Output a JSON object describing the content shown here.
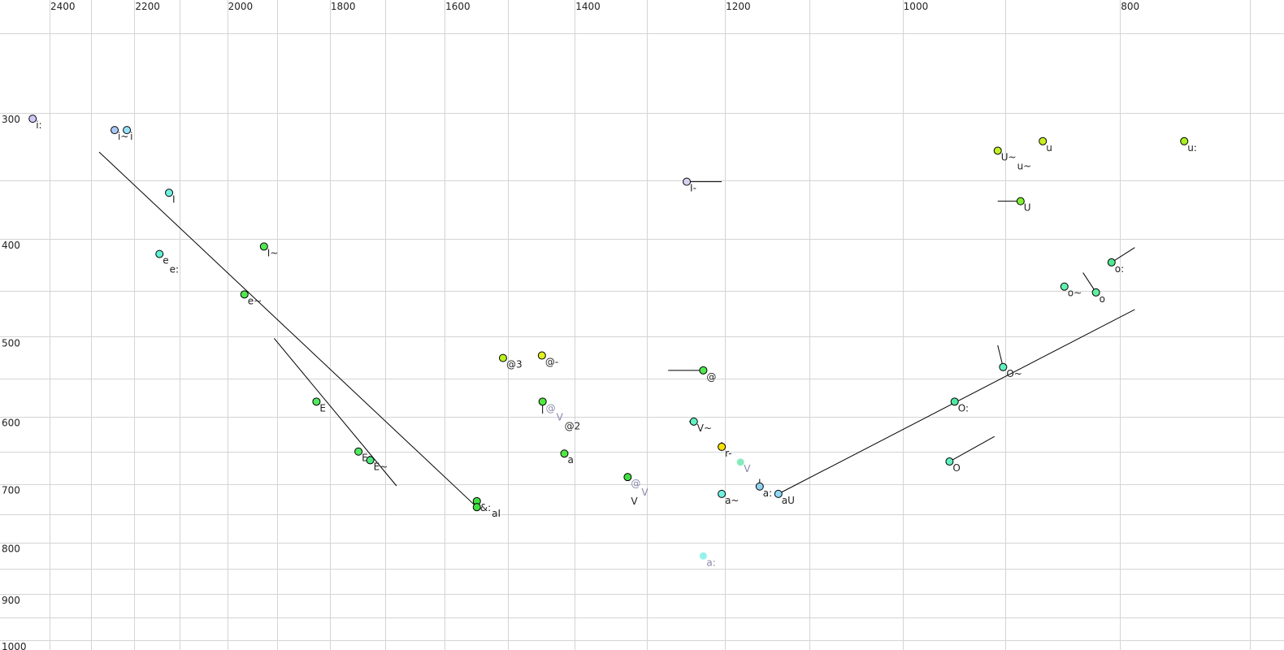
{
  "chart_data": {
    "type": "scatter",
    "title": "",
    "xlabel": "",
    "ylabel": "",
    "x_axis": {
      "quantity": "F2",
      "scale": "log",
      "reversed": true,
      "position": "top",
      "range": [
        2525,
        676
      ],
      "tick_labels": [
        2400,
        2200,
        2000,
        1800,
        1600,
        1400,
        1200,
        1000,
        800
      ],
      "grid_values": [
        2400,
        2300,
        2200,
        2100,
        2000,
        1900,
        1800,
        1700,
        1600,
        1500,
        1400,
        1300,
        1200,
        1100,
        1000,
        900,
        800,
        700
      ]
    },
    "y_axis": {
      "quantity": "F1",
      "scale": "log",
      "reversed": false,
      "position": "left",
      "range": [
        231,
        1037
      ],
      "tick_labels": [
        300,
        400,
        500,
        600,
        700,
        800,
        900,
        1000
      ],
      "grid_values": [
        250,
        300,
        350,
        400,
        450,
        500,
        550,
        600,
        650,
        700,
        750,
        800,
        850,
        900,
        950,
        1000
      ]
    },
    "grid": true,
    "points": [
      {
        "f2": 2442,
        "f1": 304,
        "color": "#d0c8f8",
        "labels": [
          {
            "text": "i:"
          }
        ]
      },
      {
        "f2": 2245,
        "f1": 312,
        "color": "#a8c8f8",
        "labels": [
          {
            "text": "i~"
          }
        ]
      },
      {
        "f2": 2217,
        "f1": 312,
        "color": "#98e0f8",
        "labels": [
          {
            "text": "i"
          }
        ]
      },
      {
        "f2": 2123,
        "f1": 360,
        "color": "#70f0e0",
        "labels": [
          {
            "text": "I"
          }
        ]
      },
      {
        "f2": 2144,
        "f1": 414,
        "color": "#60f0d8",
        "labels": [
          {
            "text": "e"
          },
          {
            "text": "e:"
          }
        ]
      },
      {
        "f2": 1926,
        "f1": 407,
        "color": "#50e850",
        "labels": [
          {
            "text": "I~"
          }
        ]
      },
      {
        "f2": 1965,
        "f1": 454,
        "color": "#50e850",
        "labels": [
          {
            "text": "e~"
          }
        ]
      },
      {
        "f2": 1825,
        "f1": 580,
        "color": "#50e860",
        "labels": [
          {
            "text": "E"
          }
        ]
      },
      {
        "f2": 1748,
        "f1": 650,
        "color": "#50e860",
        "labels": [
          {
            "text": "E:"
          }
        ]
      },
      {
        "f2": 1727,
        "f1": 663,
        "color": "#50e880",
        "labels": [
          {
            "text": "E~"
          }
        ]
      },
      {
        "f2": 1548,
        "f1": 728,
        "color": "#40e040",
        "labels": [
          {
            "text": "&:"
          }
        ]
      },
      {
        "f2": 1548,
        "f1": 738,
        "color": "#40e040",
        "labels": [
          {
            "text": "aI"
          }
        ]
      },
      {
        "f2": 1507,
        "f1": 525,
        "color": "#b8f020",
        "labels": [
          {
            "text": "@3"
          }
        ]
      },
      {
        "f2": 1448,
        "f1": 522,
        "color": "#e0f020",
        "labels": [
          {
            "text": "@-"
          }
        ]
      },
      {
        "f2": 1447,
        "f1": 580,
        "color": "#50e840",
        "labels": [
          {
            "text": "@",
            "color": "#8888a8"
          },
          {
            "text": "V",
            "color": "#8888a8"
          },
          {
            "text": "@2"
          }
        ]
      },
      {
        "f2": 1415,
        "f1": 653,
        "color": "#50e840",
        "labels": [
          {
            "text": "a"
          }
        ]
      },
      {
        "f2": 1326,
        "f1": 689,
        "color": "#40e040",
        "labels": [
          {
            "text": "@",
            "color": "#8888a8"
          },
          {
            "text": "V",
            "color": "#8888a8"
          },
          {
            "text": "V"
          }
        ]
      },
      {
        "f2": 1227,
        "f1": 540,
        "color": "#50e850",
        "labels": [
          {
            "text": "@"
          }
        ]
      },
      {
        "f2": 1239,
        "f1": 607,
        "color": "#60f0c0",
        "labels": [
          {
            "text": "V~"
          }
        ]
      },
      {
        "f2": 1204,
        "f1": 643,
        "color": "#f8e000",
        "labels": [
          {
            "text": "r-"
          }
        ]
      },
      {
        "f2": 1181,
        "f1": 666,
        "color": "#70e8b0",
        "faded": true,
        "labels": [
          {
            "text": "V",
            "color": "#8888a8"
          }
        ]
      },
      {
        "f2": 1158,
        "f1": 704,
        "color": "#90d0f0",
        "labels": [
          {
            "text": "a:"
          }
        ]
      },
      {
        "f2": 1204,
        "f1": 716,
        "color": "#70f0e0",
        "labels": [
          {
            "text": "a~"
          }
        ]
      },
      {
        "f2": 1227,
        "f1": 825,
        "color": "#80f0e8",
        "faded": true,
        "labels": [
          {
            "text": "a:",
            "color": "#8888a8"
          }
        ]
      },
      {
        "f2": 1136,
        "f1": 716,
        "color": "#90d8f8",
        "labels": [
          {
            "text": "aU"
          }
        ]
      },
      {
        "f2": 1248,
        "f1": 351,
        "color": "#d8d0f0",
        "labels": [
          {
            "text": "I-"
          }
        ]
      },
      {
        "f2": 907,
        "f1": 327,
        "color": "#c0f020",
        "labels": [
          {
            "text": "U~"
          },
          {
            "text": "u~"
          }
        ]
      },
      {
        "f2": 866,
        "f1": 320,
        "color": "#c8f020",
        "labels": [
          {
            "text": "u"
          }
        ]
      },
      {
        "f2": 749,
        "f1": 320,
        "color": "#a8f020",
        "labels": [
          {
            "text": "u:"
          }
        ]
      },
      {
        "f2": 886,
        "f1": 367,
        "color": "#80f030",
        "labels": [
          {
            "text": "U"
          }
        ]
      },
      {
        "f2": 807,
        "f1": 422,
        "color": "#50e890",
        "labels": [
          {
            "text": "o:"
          }
        ]
      },
      {
        "f2": 847,
        "f1": 446,
        "color": "#60f0b0",
        "labels": [
          {
            "text": "o~"
          }
        ]
      },
      {
        "f2": 820,
        "f1": 452,
        "color": "#60f0a0",
        "labels": [
          {
            "text": "o"
          }
        ]
      },
      {
        "f2": 902,
        "f1": 536,
        "color": "#60f0c0",
        "labels": [
          {
            "text": "O~"
          }
        ]
      },
      {
        "f2": 948,
        "f1": 580,
        "color": "#50e8a0",
        "labels": [
          {
            "text": "O:"
          }
        ]
      },
      {
        "f2": 953,
        "f1": 665,
        "color": "#60f0c0",
        "labels": [
          {
            "text": "O"
          }
        ]
      }
    ],
    "trajectories": [
      [
        [
          2281,
          328
        ],
        [
          1548,
          738
        ]
      ],
      [
        [
          1906,
          502
        ],
        [
          1681,
          703
        ]
      ],
      [
        [
          1136,
          716
        ],
        [
          788,
          470
        ]
      ],
      [
        [
          807,
          422
        ],
        [
          788,
          408
        ]
      ],
      [
        [
          831,
          432
        ],
        [
          820,
          452
        ]
      ],
      [
        [
          907,
          510
        ],
        [
          902,
          536
        ]
      ],
      [
        [
          953,
          665
        ],
        [
          910,
          628
        ]
      ],
      [
        [
          1272,
          540
        ],
        [
          1227,
          540
        ]
      ],
      [
        [
          1248,
          351
        ],
        [
          1204,
          351
        ]
      ],
      [
        [
          907,
          367
        ],
        [
          886,
          367
        ]
      ],
      [
        [
          1447,
          580
        ],
        [
          1447,
          596
        ]
      ],
      [
        [
          1158,
          704
        ],
        [
          1158,
          692
        ]
      ],
      [
        [
          1204,
          643
        ],
        [
          1204,
          636
        ]
      ],
      [
        [
          1245,
          607
        ],
        [
          1239,
          607
        ]
      ]
    ]
  }
}
